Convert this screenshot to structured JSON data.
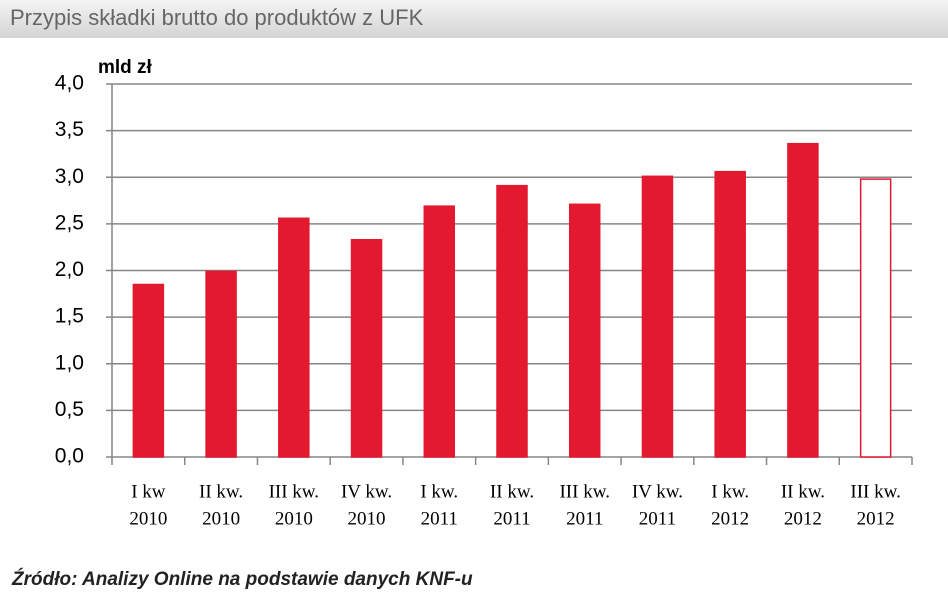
{
  "chart_data": {
    "type": "bar",
    "title": "Przypis składki brutto do produktów z UFK",
    "y_label": "mld zł",
    "source": "Źródło: Analizy Online na podstawie danych KNF-u",
    "categories": [
      [
        "I kw",
        "2010"
      ],
      [
        "II kw.",
        "2010"
      ],
      [
        "III kw.",
        "2010"
      ],
      [
        "IV kw.",
        "2010"
      ],
      [
        "I kw.",
        "2011"
      ],
      [
        "II kw.",
        "2011"
      ],
      [
        "III kw.",
        "2011"
      ],
      [
        "IV kw.",
        "2011"
      ],
      [
        "I kw.",
        "2012"
      ],
      [
        "II kw.",
        "2012"
      ],
      [
        "III kw.",
        "2012"
      ]
    ],
    "values": [
      1.85,
      1.99,
      2.56,
      2.33,
      2.69,
      2.91,
      2.71,
      3.01,
      3.06,
      3.36,
      2.98
    ],
    "colors": [
      "#e3192f",
      "#e3192f",
      "#e3192f",
      "#e3192f",
      "#e3192f",
      "#e3192f",
      "#e3192f",
      "#e3192f",
      "#e3192f",
      "#e3192f",
      "#ffffff"
    ],
    "edge_color": "#e3192f",
    "ylim": [
      0,
      4
    ],
    "yticks": [
      {
        "value": 0,
        "label": "0,0"
      },
      {
        "value": 0.5,
        "label": "0,5"
      },
      {
        "value": 1,
        "label": "1,0"
      },
      {
        "value": 1.5,
        "label": "1,5"
      },
      {
        "value": 2,
        "label": "2,0"
      },
      {
        "value": 2.5,
        "label": "2,5"
      },
      {
        "value": 3,
        "label": "3,0"
      },
      {
        "value": 3.5,
        "label": "3,5"
      },
      {
        "value": 4,
        "label": "4,0"
      }
    ],
    "grid": true
  }
}
